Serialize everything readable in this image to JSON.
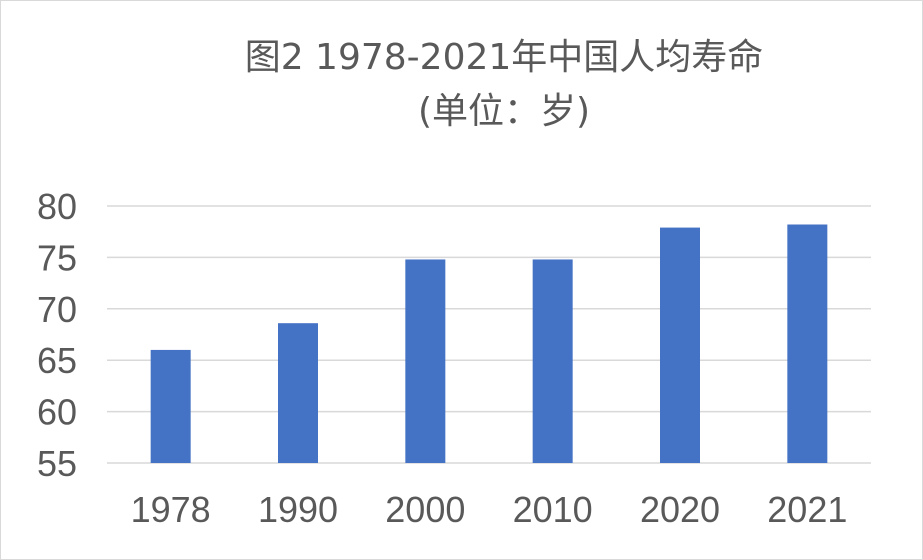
{
  "chart_data": {
    "type": "bar",
    "title": "图2 1978-2021年中国人均寿命",
    "subtitle": "(单位：岁)",
    "categories": [
      "1978",
      "1990",
      "2000",
      "2010",
      "2020",
      "2021"
    ],
    "values": [
      66.0,
      68.6,
      74.8,
      74.8,
      77.9,
      78.2
    ],
    "ylim": [
      55,
      80
    ],
    "yticks": [
      55,
      60,
      65,
      70,
      75,
      80
    ],
    "xlabel": "",
    "ylabel": "",
    "grid": true,
    "legend": "none",
    "colors": {
      "bar": "#4472C4",
      "grid": "#d9d9d9",
      "text": "#595959"
    }
  }
}
